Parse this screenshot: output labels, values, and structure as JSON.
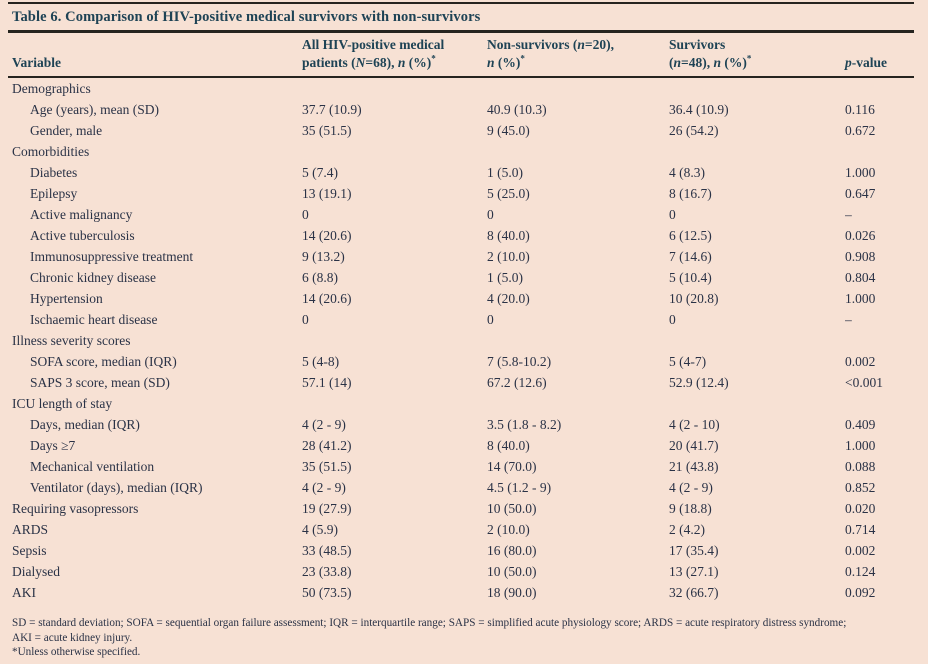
{
  "title": "Table 6. Comparison of HIV-positive medical survivors with non-survivors",
  "colors": {
    "background": "#f7e1d4",
    "heading_text": "#1e4355",
    "body_text": "#2a3246",
    "rule": "#26241f"
  },
  "header": {
    "variable": "Variable",
    "all": {
      "line1": "All HIV-positive medical",
      "p1": "patients (",
      "nbig": "N",
      "p2": "=68), ",
      "nsmall": "n",
      "p3": " (%)",
      "star": "*"
    },
    "non": {
      "l1a": "Non-survivors (",
      "l1n": "n",
      "l1b": "=20),",
      "l2n": "n",
      "l2a": " (%)",
      "star": "*"
    },
    "sur": {
      "line1": "Survivors",
      "p1": "(",
      "n1": "n",
      "p2": "=48), ",
      "n2": "n",
      "p3": " (%)",
      "star": "*"
    },
    "p": {
      "it": "p",
      "rest": "-value"
    }
  },
  "table": {
    "rows": [
      {
        "label": "Demographics",
        "indent": false,
        "all": "",
        "non": "",
        "sur": "",
        "p": ""
      },
      {
        "label": "Age (years), mean (SD)",
        "indent": true,
        "all": "37.7 (10.9)",
        "non": "40.9 (10.3)",
        "sur": "36.4 (10.9)",
        "p": "0.116"
      },
      {
        "label": "Gender, male",
        "indent": true,
        "all": "35 (51.5)",
        "non": "9 (45.0)",
        "sur": "26 (54.2)",
        "p": "0.672"
      },
      {
        "label": "Comorbidities",
        "indent": false,
        "all": "",
        "non": "",
        "sur": "",
        "p": ""
      },
      {
        "label": "Diabetes",
        "indent": true,
        "all": "5 (7.4)",
        "non": "1 (5.0)",
        "sur": "4 (8.3)",
        "p": "1.000"
      },
      {
        "label": "Epilepsy",
        "indent": true,
        "all": "13 (19.1)",
        "non": "5 (25.0)",
        "sur": "8 (16.7)",
        "p": "0.647"
      },
      {
        "label": "Active malignancy",
        "indent": true,
        "all": "0",
        "non": "0",
        "sur": "0",
        "p": "–"
      },
      {
        "label": "Active tuberculosis",
        "indent": true,
        "all": "14 (20.6)",
        "non": "8 (40.0)",
        "sur": "6 (12.5)",
        "p": "0.026"
      },
      {
        "label": "Immunosuppressive treatment",
        "indent": true,
        "all": "9 (13.2)",
        "non": "2 (10.0)",
        "sur": "7 (14.6)",
        "p": "0.908"
      },
      {
        "label": "Chronic kidney disease",
        "indent": true,
        "all": "6 (8.8)",
        "non": "1 (5.0)",
        "sur": "5 (10.4)",
        "p": "0.804"
      },
      {
        "label": "Hypertension",
        "indent": true,
        "all": "14 (20.6)",
        "non": "4 (20.0)",
        "sur": "10 (20.8)",
        "p": "1.000"
      },
      {
        "label": "Ischaemic heart disease",
        "indent": true,
        "all": "0",
        "non": "0",
        "sur": "0",
        "p": "–"
      },
      {
        "label": "Illness severity scores",
        "indent": false,
        "all": "",
        "non": "",
        "sur": "",
        "p": ""
      },
      {
        "label": "SOFA score, median (IQR)",
        "indent": true,
        "all": "5 (4-8)",
        "non": "7 (5.8-10.2)",
        "sur": "5 (4-7)",
        "p": "0.002"
      },
      {
        "label": "SAPS 3 score, mean (SD)",
        "indent": true,
        "all": "57.1 (14)",
        "non": "67.2 (12.6)",
        "sur": "52.9 (12.4)",
        "p": "<0.001"
      },
      {
        "label": "ICU length of stay",
        "indent": false,
        "all": "",
        "non": "",
        "sur": "",
        "p": ""
      },
      {
        "label": "Days, median (IQR)",
        "indent": true,
        "all": "4 (2 - 9)",
        "non": "3.5 (1.8 - 8.2)",
        "sur": "4 (2 - 10)",
        "p": "0.409"
      },
      {
        "label": "Days ≥7",
        "indent": true,
        "all": "28 (41.2)",
        "non": "8 (40.0)",
        "sur": "20 (41.7)",
        "p": "1.000"
      },
      {
        "label": "Mechanical ventilation",
        "indent": true,
        "all": "35 (51.5)",
        "non": "14 (70.0)",
        "sur": "21 (43.8)",
        "p": "0.088"
      },
      {
        "label": "Ventilator (days), median (IQR)",
        "indent": true,
        "all": "4 (2 - 9)",
        "non": "4.5 (1.2 - 9)",
        "sur": "4 (2 - 9)",
        "p": "0.852"
      },
      {
        "label": "Requiring vasopressors",
        "indent": false,
        "all": "19 (27.9)",
        "non": "10 (50.0)",
        "sur": "9 (18.8)",
        "p": "0.020"
      },
      {
        "label": "ARDS",
        "indent": false,
        "all": "4 (5.9)",
        "non": "2 (10.0)",
        "sur": "2 (4.2)",
        "p": "0.714"
      },
      {
        "label": "Sepsis",
        "indent": false,
        "all": "33 (48.5)",
        "non": "16 (80.0)",
        "sur": "17 (35.4)",
        "p": "0.002"
      },
      {
        "label": "Dialysed",
        "indent": false,
        "all": "23 (33.8)",
        "non": "10 (50.0)",
        "sur": "13 (27.1)",
        "p": "0.124"
      },
      {
        "label": "AKI",
        "indent": false,
        "all": "50 (73.5)",
        "non": "18 (90.0)",
        "sur": "32 (66.7)",
        "p": "0.092"
      }
    ]
  },
  "footnotes": [
    "SD = standard deviation; SOFA = sequential organ failure assessment; IQR = interquartile range; SAPS = simplified acute physiology score; ARDS = acute respiratory distress syndrome;",
    "AKI = acute kidney injury.",
    "*Unless otherwise specified."
  ]
}
